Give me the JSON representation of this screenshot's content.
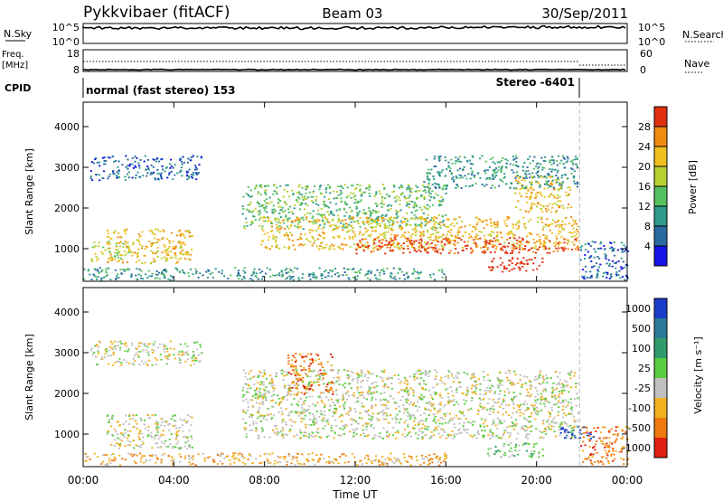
{
  "header": {
    "station": "Pykkvibaer (fitACF)",
    "beam": "Beam 03",
    "date": "30/Sep/2011"
  },
  "noise_panel": {
    "left_label": "N.Sky",
    "left_ticks": [
      "10^5",
      "10^0"
    ],
    "right_ticks": [
      "10^5",
      "10^0"
    ],
    "right_label": "N.Search"
  },
  "freq_panel": {
    "left_label_line1": "Freq.",
    "left_label_line2": "[MHz]",
    "left_ticks": [
      "18",
      "8"
    ],
    "right_ticks": [
      "60",
      "0"
    ],
    "right_label": "Nave"
  },
  "cpid_panel": {
    "label": "CPID",
    "mode1": "normal (fast stereo) 153",
    "mode2": "Stereo -6401"
  },
  "time_axis": {
    "label": "Time UT",
    "ticks": [
      "00:00",
      "04:00",
      "08:00",
      "12:00",
      "16:00",
      "20:00",
      "00:00"
    ]
  },
  "chart_data": [
    {
      "type": "heatmap",
      "name": "power",
      "ylabel": "Slant Range [km]",
      "xlabel": "",
      "yticks": [
        "1000",
        "2000",
        "3000",
        "4000"
      ],
      "ylim": [
        200,
        4600
      ],
      "xlim_hours": [
        0,
        24
      ],
      "colorbar": {
        "label": "Power [dB]",
        "ticks": [
          "4",
          "8",
          "12",
          "16",
          "20",
          "24",
          "28"
        ],
        "colors": [
          "#1414e6",
          "#2a6aa0",
          "#2f9a8a",
          "#55c060",
          "#b8d030",
          "#f0c020",
          "#f08a10",
          "#e03010"
        ]
      },
      "scatter_regions": [
        {
          "t0": 0.3,
          "t1": 5.2,
          "r0": 2700,
          "r1": 3300,
          "level": 1
        },
        {
          "t0": 0.3,
          "t1": 2.0,
          "r0": 700,
          "r1": 1200,
          "level": 4
        },
        {
          "t0": 1.0,
          "t1": 4.8,
          "r0": 650,
          "r1": 1500,
          "level": 5
        },
        {
          "t0": 7.0,
          "t1": 16.0,
          "r0": 1500,
          "r1": 2600,
          "level": 3
        },
        {
          "t0": 7.8,
          "t1": 21.8,
          "r0": 1000,
          "r1": 1800,
          "level": 5
        },
        {
          "t0": 12.0,
          "t1": 21.8,
          "r0": 900,
          "r1": 1300,
          "level": 7
        },
        {
          "t0": 17.8,
          "t1": 20.3,
          "r0": 450,
          "r1": 800,
          "level": 8
        },
        {
          "t0": 19.0,
          "t1": 21.5,
          "r0": 1900,
          "r1": 2800,
          "level": 5
        },
        {
          "t0": 15.0,
          "t1": 21.8,
          "r0": 2500,
          "r1": 3300,
          "level": 2
        },
        {
          "t0": 0.0,
          "t1": 16.0,
          "r0": 250,
          "r1": 550,
          "level": 2
        },
        {
          "t0": 21.9,
          "t1": 24.0,
          "r0": 250,
          "r1": 1200,
          "level": 1
        }
      ]
    },
    {
      "type": "heatmap",
      "name": "velocity",
      "ylabel": "Slant Range [km]",
      "xlabel": "Time UT",
      "yticks": [
        "1000",
        "2000",
        "3000",
        "4000"
      ],
      "ylim": [
        200,
        4600
      ],
      "xlim_hours": [
        0,
        24
      ],
      "colorbar": {
        "label": "Velocity [m s⁻¹]",
        "ticks": [
          "1000",
          "500",
          "100",
          "25",
          "-25",
          "-100",
          "-500",
          "-1000"
        ],
        "colors": [
          "#1a3cc8",
          "#2a7a9a",
          "#2f9a6a",
          "#5acc40",
          "#c0c0c0",
          "#f0b020",
          "#f07a10",
          "#e02010"
        ]
      },
      "scatter_regions": [
        {
          "t0": 0.3,
          "t1": 5.2,
          "r0": 2700,
          "r1": 3300,
          "level": 4
        },
        {
          "t0": 1.0,
          "t1": 4.8,
          "r0": 650,
          "r1": 1500,
          "level": 4
        },
        {
          "t0": 7.0,
          "t1": 21.8,
          "r0": 900,
          "r1": 2600,
          "level": 4
        },
        {
          "t0": 9.0,
          "t1": 11.0,
          "r0": 2000,
          "r1": 3000,
          "level": 6
        },
        {
          "t0": 17.8,
          "t1": 20.3,
          "r0": 450,
          "r1": 800,
          "level": 3
        },
        {
          "t0": 0.0,
          "t1": 16.0,
          "r0": 250,
          "r1": 550,
          "level": 5
        },
        {
          "t0": 21.9,
          "t1": 24.0,
          "r0": 250,
          "r1": 1200,
          "level": 6
        },
        {
          "t0": 21.0,
          "t1": 22.5,
          "r0": 900,
          "r1": 1200,
          "level": 0
        }
      ]
    }
  ]
}
